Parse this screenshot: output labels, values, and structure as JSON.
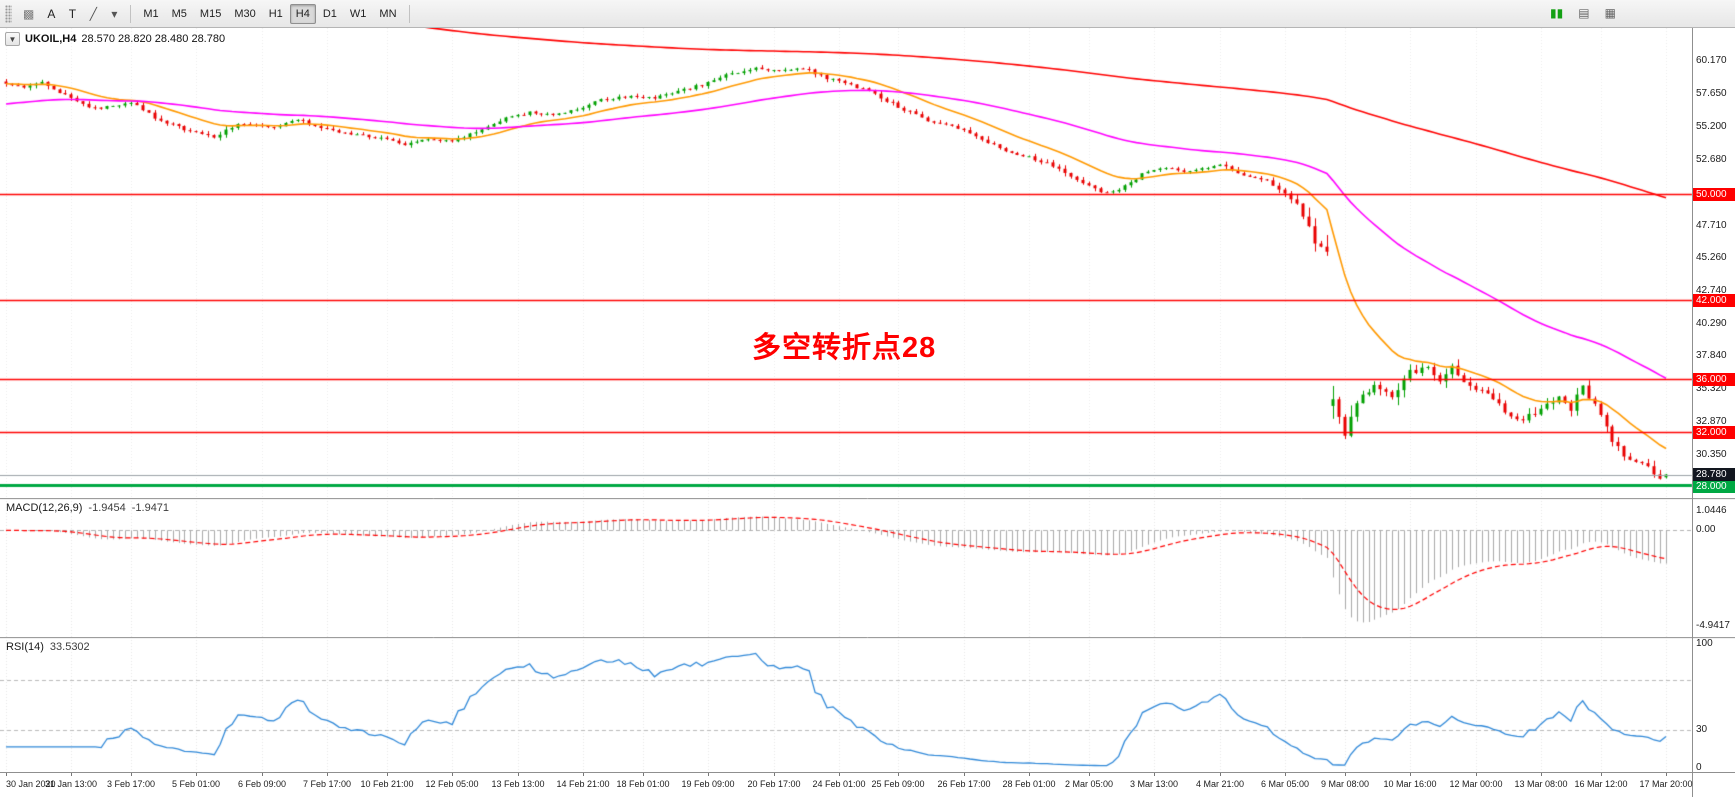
{
  "toolbar": {
    "left_buttons": [
      {
        "name": "chart-window-icon",
        "glyph": "▩",
        "color": "#7a7a7a"
      },
      {
        "name": "text-label-tool",
        "glyph": "A",
        "color": "#222222"
      },
      {
        "name": "text-tool",
        "glyph": "T",
        "color": "#222222"
      },
      {
        "name": "draw-tool-icon",
        "glyph": "╱",
        "color": "#555555"
      },
      {
        "name": "draw-tool-caret-icon",
        "glyph": "▾",
        "color": "#555555"
      }
    ],
    "timeframes": [
      "M1",
      "M5",
      "M15",
      "M30",
      "H1",
      "H4",
      "D1",
      "W1",
      "MN"
    ],
    "active_timeframe": "H4",
    "right_icons": [
      {
        "name": "new-chart-icon",
        "glyph": "▮▮",
        "color": "#13a013"
      },
      {
        "name": "tile-windows-icon",
        "glyph": "▤",
        "color": "#666666"
      },
      {
        "name": "data-window-icon",
        "glyph": "▦",
        "color": "#666666"
      }
    ]
  },
  "header": {
    "caret": "▼",
    "symbol_label": "UKOIL,H4",
    "ohlc": "28.570 28.820 28.480 28.780"
  },
  "chart_data": {
    "type": "candlestick",
    "symbol": "UKOIL",
    "timeframe": "H4",
    "bars": 280,
    "price_range": {
      "min": 27.0,
      "max": 62.6
    },
    "last_ohlc": {
      "open": "28.570",
      "high": "28.820",
      "low": "28.480",
      "close": "28.780"
    },
    "candle_colors": {
      "up": "#00A000",
      "down": "#E80000"
    },
    "close_path_anchors": [
      [
        0,
        58.4
      ],
      [
        3,
        58.1
      ],
      [
        6,
        58.6
      ],
      [
        11,
        57.2
      ],
      [
        15,
        56.5
      ],
      [
        21,
        56.9
      ],
      [
        26,
        55.6
      ],
      [
        31,
        54.8
      ],
      [
        35,
        54.3
      ],
      [
        39,
        55.4
      ],
      [
        45,
        55.1
      ],
      [
        49,
        55.7
      ],
      [
        53,
        55.0
      ],
      [
        57,
        54.6
      ],
      [
        63,
        54.3
      ],
      [
        67,
        53.8
      ],
      [
        71,
        54.2
      ],
      [
        75,
        54.0
      ],
      [
        80,
        54.9
      ],
      [
        84,
        55.8
      ],
      [
        88,
        56.2
      ],
      [
        92,
        56.0
      ],
      [
        96,
        56.4
      ],
      [
        100,
        57.2
      ],
      [
        105,
        57.4
      ],
      [
        109,
        57.3
      ],
      [
        113,
        57.8
      ],
      [
        117,
        58.3
      ],
      [
        121,
        59.0
      ],
      [
        126,
        59.6
      ],
      [
        130,
        59.3
      ],
      [
        134,
        59.55
      ],
      [
        138,
        58.8
      ],
      [
        142,
        58.3
      ],
      [
        146,
        57.6
      ],
      [
        151,
        56.4
      ],
      [
        155,
        55.6
      ],
      [
        159,
        55.2
      ],
      [
        163,
        54.5
      ],
      [
        167,
        53.5
      ],
      [
        172,
        52.8
      ],
      [
        176,
        52.2
      ],
      [
        180,
        51.2
      ],
      [
        184,
        50.1
      ],
      [
        187,
        50.4
      ],
      [
        191,
        51.5
      ],
      [
        195,
        52.0
      ],
      [
        199,
        51.7
      ],
      [
        204,
        52.2
      ],
      [
        208,
        51.5
      ],
      [
        212,
        51.0
      ],
      [
        215,
        50.2
      ],
      [
        218,
        48.6
      ],
      [
        220,
        46.4
      ],
      [
        222,
        45.3
      ],
      [
        223,
        34.2
      ],
      [
        225,
        31.8
      ],
      [
        227,
        34.2
      ],
      [
        230,
        35.7
      ],
      [
        233,
        34.5
      ],
      [
        236,
        36.5
      ],
      [
        239,
        36.8
      ],
      [
        241,
        35.9
      ],
      [
        243,
        36.9
      ],
      [
        246,
        35.5
      ],
      [
        249,
        34.8
      ],
      [
        252,
        33.5
      ],
      [
        255,
        32.8
      ],
      [
        258,
        33.9
      ],
      [
        261,
        34.6
      ],
      [
        263,
        33.8
      ],
      [
        265,
        35.4
      ],
      [
        268,
        33.2
      ],
      [
        270,
        31.5
      ],
      [
        272,
        30.3
      ],
      [
        274,
        29.8
      ],
      [
        276,
        29.3
      ],
      [
        278,
        28.55
      ],
      [
        279,
        28.78
      ]
    ],
    "moving_averages": [
      {
        "name": "ma-fast-orange",
        "color": "#FF9900",
        "period": 16
      },
      {
        "name": "ma-mid-magenta",
        "color": "#FF00FF",
        "period": 64,
        "init": 56.8
      },
      {
        "name": "ma-slow-red",
        "color": "#FF0000",
        "period": 300,
        "init": 67.0
      }
    ],
    "horizontal_levels": [
      {
        "price": 50.0,
        "color": "#FF0000",
        "label": "50.000",
        "width": 1.6
      },
      {
        "price": 42.0,
        "color": "#FF0000",
        "label": "42.000",
        "width": 1.6
      },
      {
        "price": 36.0,
        "color": "#FF0000",
        "label": "36.000",
        "width": 1.6
      },
      {
        "price": 32.0,
        "color": "#FF0000",
        "label": "32.000",
        "width": 1.6
      },
      {
        "price": 28.0,
        "color": "#00A843",
        "label": "28.000",
        "width": 3
      }
    ],
    "bid_line": {
      "price": 28.78,
      "color": "#9aa0a6",
      "label": "28.780",
      "badge_color": "#12161f"
    },
    "price_ticks": [
      {
        "v": 60.17,
        "label": "60.170"
      },
      {
        "v": 57.65,
        "label": "57.650"
      },
      {
        "v": 55.2,
        "label": "55.200"
      },
      {
        "v": 52.68,
        "label": "52.680"
      },
      {
        "v": 47.71,
        "label": "47.710"
      },
      {
        "v": 45.26,
        "label": "45.260"
      },
      {
        "v": 42.74,
        "label": "42.740"
      },
      {
        "v": 40.29,
        "label": "40.290"
      },
      {
        "v": 37.84,
        "label": "37.840"
      },
      {
        "v": 35.32,
        "label": "35.320"
      },
      {
        "v": 32.87,
        "label": "32.870"
      },
      {
        "v": 30.35,
        "label": "30.350"
      }
    ],
    "macd": {
      "title": "MACD(12,26,9)",
      "params": [
        12,
        26,
        9
      ],
      "value_main": "-1.9454",
      "value_signal": "-1.9471",
      "axis_labels": {
        "top": "1.0446",
        "zero": "0.00",
        "bottom": "-4.9417"
      },
      "histogram_color": "#a8a8a8",
      "signal_color": "#FF0000"
    },
    "rsi": {
      "title": "RSI(14)",
      "period": 14,
      "value": "33.5302",
      "color": "#2F88D8",
      "levels": [
        70,
        30
      ],
      "axis_labels": {
        "top": "100",
        "level": "30",
        "bottom": "0"
      }
    },
    "time_labels": [
      "30 Jan 2020",
      "31 Jan 13:00",
      "3 Feb 17:00",
      "5 Feb 01:00",
      "6 Feb 09:00",
      "7 Feb 17:00",
      "10 Feb 21:00",
      "12 Feb 05:00",
      "13 Feb 13:00",
      "14 Feb 21:00",
      "18 Feb 01:00",
      "19 Feb 09:00",
      "20 Feb 17:00",
      "24 Feb 01:00",
      "25 Feb 09:00",
      "26 Feb 17:00",
      "28 Feb 01:00",
      "2 Mar 05:00",
      "3 Mar 13:00",
      "4 Mar 21:00",
      "6 Mar 05:00",
      "9 Mar 08:00",
      "10 Mar 16:00",
      "12 Mar 00:00",
      "13 Mar 08:00",
      "16 Mar 12:00",
      "17 Mar 20:00"
    ],
    "annotation": {
      "text": "多空转折点28",
      "color": "#FF0000"
    }
  }
}
